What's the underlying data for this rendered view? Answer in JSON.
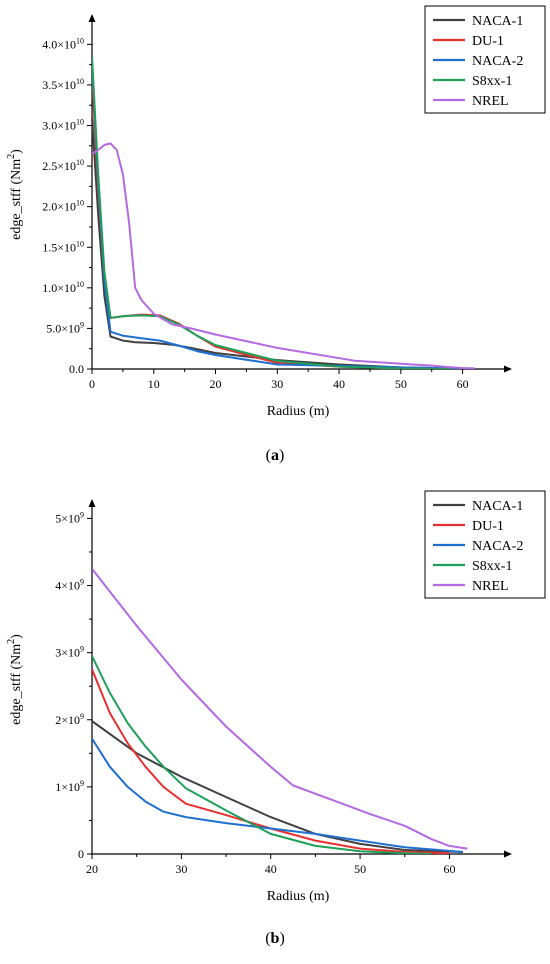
{
  "figure": {
    "caption_a": "a",
    "caption_b": "b"
  },
  "chart_data": [
    {
      "id": "a",
      "type": "line",
      "xlabel": "Radius (m)",
      "ylabel": "edge_stff (Nm",
      "ylabel_sup": "2",
      "ylabel_end": ")",
      "xlim": [
        0,
        68
      ],
      "ylim": [
        0,
        43000000000.0
      ],
      "x_ticks": [
        0,
        10,
        20,
        30,
        40,
        50,
        60
      ],
      "y_ticks": [
        {
          "value": 0,
          "label": "0.0"
        },
        {
          "value": 5000000000.0,
          "label": "5.0×10",
          "exp": "9"
        },
        {
          "value": 10000000000.0,
          "label": "1.0×10",
          "exp": "10"
        },
        {
          "value": 15000000000.0,
          "label": "1.5×10",
          "exp": "10"
        },
        {
          "value": 20000000000.0,
          "label": "2.0×10",
          "exp": "10"
        },
        {
          "value": 25000000000.0,
          "label": "2.5×10",
          "exp": "10"
        },
        {
          "value": 30000000000.0,
          "label": "3.0×10",
          "exp": "10"
        },
        {
          "value": 35000000000.0,
          "label": "3.5×10",
          "exp": "10"
        },
        {
          "value": 40000000000.0,
          "label": "4.0×10",
          "exp": "10"
        }
      ],
      "legend": {
        "position": "top-right"
      },
      "series": [
        {
          "name": "NACA-1",
          "color": "#404040",
          "x": [
            0,
            1,
            2,
            3,
            5,
            7,
            10,
            13,
            16,
            20,
            30,
            40,
            50,
            61.5
          ],
          "y": [
            31000000000.0,
            19000000000.0,
            9000000000.0,
            4000000000.0,
            3500000000.0,
            3300000000.0,
            3200000000.0,
            3000000000.0,
            2600000000.0,
            1970000000.0,
            1100000000.0,
            550000000.0,
            200000000.0,
            30000000.0
          ]
        },
        {
          "name": "DU-1",
          "color": "#e83030",
          "x": [
            0,
            1,
            2,
            3,
            5,
            8,
            11,
            14,
            17,
            20,
            30,
            40,
            50,
            60
          ],
          "y": [
            36000000000.0,
            22000000000.0,
            11000000000.0,
            6300000000.0,
            6500000000.0,
            6700000000.0,
            6600000000.0,
            5600000000.0,
            4100000000.0,
            2750000000.0,
            750000000.0,
            300000000.0,
            80000000.0,
            20000000.0
          ]
        },
        {
          "name": "NACA-2",
          "color": "#1f6fd0",
          "x": [
            0,
            1,
            2,
            3,
            5,
            8,
            11,
            14,
            17,
            20,
            30,
            40,
            50,
            61.5
          ],
          "y": [
            38000000000.0,
            23000000000.0,
            11000000000.0,
            4600000000.0,
            4100000000.0,
            3800000000.0,
            3500000000.0,
            2900000000.0,
            2200000000.0,
            1720000000.0,
            550000000.0,
            380000000.0,
            200000000.0,
            30000000.0
          ]
        },
        {
          "name": "S8xx-1",
          "color": "#1fa05a",
          "x": [
            0,
            1,
            2,
            3,
            5,
            8,
            11,
            14,
            17,
            20,
            30,
            40,
            50,
            58
          ],
          "y": [
            38500000000.0,
            24000000000.0,
            12000000000.0,
            6300000000.0,
            6500000000.0,
            6600000000.0,
            6500000000.0,
            5500000000.0,
            4100000000.0,
            2950000000.0,
            1000000000.0,
            300000000.0,
            60000000.0,
            10000000.0
          ]
        },
        {
          "name": "NREL",
          "color": "#b46ae0",
          "x": [
            0,
            1,
            2,
            3,
            4,
            5,
            6,
            7,
            8,
            10,
            13,
            16,
            20,
            30,
            42.5,
            50,
            55,
            58,
            60,
            62
          ],
          "y": [
            26500000000.0,
            27000000000.0,
            27600000000.0,
            27800000000.0,
            27000000000.0,
            24000000000.0,
            18000000000.0,
            10000000000.0,
            8500000000.0,
            6800000000.0,
            5500000000.0,
            5000000000.0,
            4250000000.0,
            2600000000.0,
            1020000000.0,
            650000000.0,
            420000000.0,
            220000000.0,
            120000000.0,
            80000000.0
          ]
        }
      ]
    },
    {
      "id": "b",
      "type": "line",
      "xlabel": "Radius (m)",
      "ylabel": "edge_stff (Nm",
      "ylabel_sup": "2",
      "ylabel_end": ")",
      "xlim": [
        20,
        67
      ],
      "ylim": [
        0,
        5200000000.0
      ],
      "x_ticks": [
        20,
        30,
        40,
        50,
        60
      ],
      "y_ticks": [
        {
          "value": 0,
          "label": "0"
        },
        {
          "value": 1000000000.0,
          "label": "1×10",
          "exp": "9"
        },
        {
          "value": 2000000000.0,
          "label": "2×10",
          "exp": "9"
        },
        {
          "value": 3000000000.0,
          "label": "3×10",
          "exp": "9"
        },
        {
          "value": 4000000000.0,
          "label": "4×10",
          "exp": "9"
        },
        {
          "value": 5000000000.0,
          "label": "5×10",
          "exp": "9"
        }
      ],
      "legend": {
        "position": "top-right"
      },
      "series": [
        {
          "name": "NACA-1",
          "color": "#404040",
          "x": [
            20,
            25,
            30,
            35,
            40,
            45,
            50,
            55,
            61.5
          ],
          "y": [
            1980000000.0,
            1500000000.0,
            1150000000.0,
            850000000.0,
            550000000.0,
            300000000.0,
            150000000.0,
            60000000.0,
            30000000.0
          ]
        },
        {
          "name": "DU-1",
          "color": "#e83030",
          "x": [
            20,
            22,
            24,
            26,
            28,
            30.5,
            35,
            40,
            45,
            50,
            55,
            60
          ],
          "y": [
            2750000000.0,
            2100000000.0,
            1650000000.0,
            1300000000.0,
            1000000000.0,
            750000000.0,
            580000000.0,
            380000000.0,
            200000000.0,
            80000000.0,
            30000000.0,
            10000000.0
          ]
        },
        {
          "name": "NACA-2",
          "color": "#1f6fd0",
          "x": [
            20,
            22,
            24,
            26,
            28,
            30.5,
            35,
            40,
            45,
            50,
            55,
            61.5
          ],
          "y": [
            1720000000.0,
            1300000000.0,
            1000000000.0,
            780000000.0,
            630000000.0,
            550000000.0,
            460000000.0,
            380000000.0,
            300000000.0,
            200000000.0,
            100000000.0,
            30000000.0
          ]
        },
        {
          "name": "S8xx-1",
          "color": "#1fa05a",
          "x": [
            20,
            22,
            24,
            26,
            28,
            30.5,
            35,
            40,
            45,
            50,
            55,
            58
          ],
          "y": [
            2950000000.0,
            2400000000.0,
            1950000000.0,
            1600000000.0,
            1300000000.0,
            980000000.0,
            650000000.0,
            300000000.0,
            120000000.0,
            40000000.0,
            10000000.0,
            0
          ]
        },
        {
          "name": "NREL",
          "color": "#b46ae0",
          "x": [
            20,
            25,
            30,
            35,
            40,
            42.5,
            47,
            51,
            55,
            58,
            60,
            62
          ],
          "y": [
            4250000000.0,
            3400000000.0,
            2600000000.0,
            1900000000.0,
            1300000000.0,
            1020000000.0,
            800000000.0,
            600000000.0,
            420000000.0,
            220000000.0,
            120000000.0,
            80000000.0
          ]
        }
      ]
    }
  ]
}
